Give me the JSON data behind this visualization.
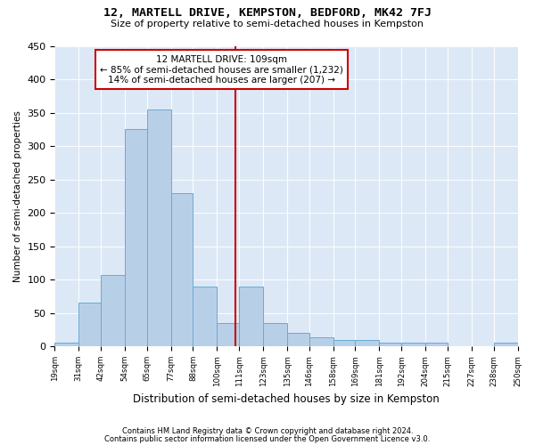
{
  "title": "12, MARTELL DRIVE, KEMPSTON, BEDFORD, MK42 7FJ",
  "subtitle": "Size of property relative to semi-detached houses in Kempston",
  "xlabel": "Distribution of semi-detached houses by size in Kempston",
  "ylabel": "Number of semi-detached properties",
  "footnote1": "Contains HM Land Registry data © Crown copyright and database right 2024.",
  "footnote2": "Contains public sector information licensed under the Open Government Licence v3.0.",
  "annotation_title": "12 MARTELL DRIVE: 109sqm",
  "annotation_line1": "← 85% of semi-detached houses are smaller (1,232)",
  "annotation_line2": "14% of semi-detached houses are larger (207) →",
  "bar_left_edges": [
    19,
    31,
    42,
    54,
    65,
    77,
    88,
    100,
    111,
    123,
    135,
    146,
    158,
    169,
    181,
    192,
    204,
    215,
    227,
    238
  ],
  "bar_right_edges": [
    31,
    42,
    54,
    65,
    77,
    88,
    100,
    111,
    123,
    135,
    146,
    158,
    169,
    181,
    192,
    204,
    215,
    227,
    238,
    250
  ],
  "bar_heights": [
    5,
    65,
    107,
    325,
    355,
    230,
    90,
    35,
    90,
    35,
    20,
    14,
    10,
    10,
    5,
    5,
    5,
    0,
    0,
    5
  ],
  "bar_color": "#b8cfe8",
  "bar_edge_color": "#6aaad4",
  "vline_color": "#cc0000",
  "vline_x": 109,
  "box_edge_color": "#cc0000",
  "ylim": [
    0,
    450
  ],
  "yticks": [
    0,
    50,
    100,
    150,
    200,
    250,
    300,
    350,
    400,
    450
  ],
  "tick_labels": [
    "19sqm",
    "31sqm",
    "42sqm",
    "54sqm",
    "65sqm",
    "77sqm",
    "88sqm",
    "100sqm",
    "111sqm",
    "123sqm",
    "135sqm",
    "146sqm",
    "158sqm",
    "169sqm",
    "181sqm",
    "192sqm",
    "204sqm",
    "215sqm",
    "227sqm",
    "238sqm",
    "250sqm"
  ],
  "plot_bg_color": "#dce8f5",
  "fig_bg_color": "#ffffff"
}
